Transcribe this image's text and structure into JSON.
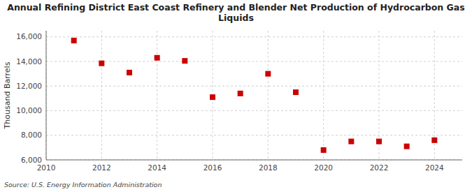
{
  "chart_data": {
    "type": "scatter",
    "title": "Annual Refining District East Coast Refinery and Blender Net Production of Hydrocarbon Gas\nLiquids",
    "y_label": "Thousand Barrels",
    "source": "Source: U.S. Energy Information Administration",
    "x": [
      2011,
      2012,
      2013,
      2014,
      2015,
      2016,
      2017,
      2018,
      2019,
      2020,
      2021,
      2022,
      2023,
      2024
    ],
    "values": [
      15700,
      13850,
      13100,
      14300,
      14050,
      11100,
      11400,
      13000,
      11500,
      6800,
      7500,
      7500,
      7100,
      7600
    ],
    "color": "#cc0000",
    "marker": "square",
    "xlim": [
      2010,
      2025
    ],
    "ylim": [
      6000,
      16500
    ],
    "xticks": [
      2010,
      2012,
      2014,
      2016,
      2018,
      2020,
      2022,
      2024
    ],
    "yticks": [
      {
        "value": 6000,
        "label": "6,000"
      },
      {
        "value": 8000,
        "label": "8,000"
      },
      {
        "value": 10000,
        "label": "10,000"
      },
      {
        "value": 12000,
        "label": "12,000"
      },
      {
        "value": 14000,
        "label": "14,000"
      },
      {
        "value": 16000,
        "label": "16,000"
      }
    ],
    "grid": true
  }
}
